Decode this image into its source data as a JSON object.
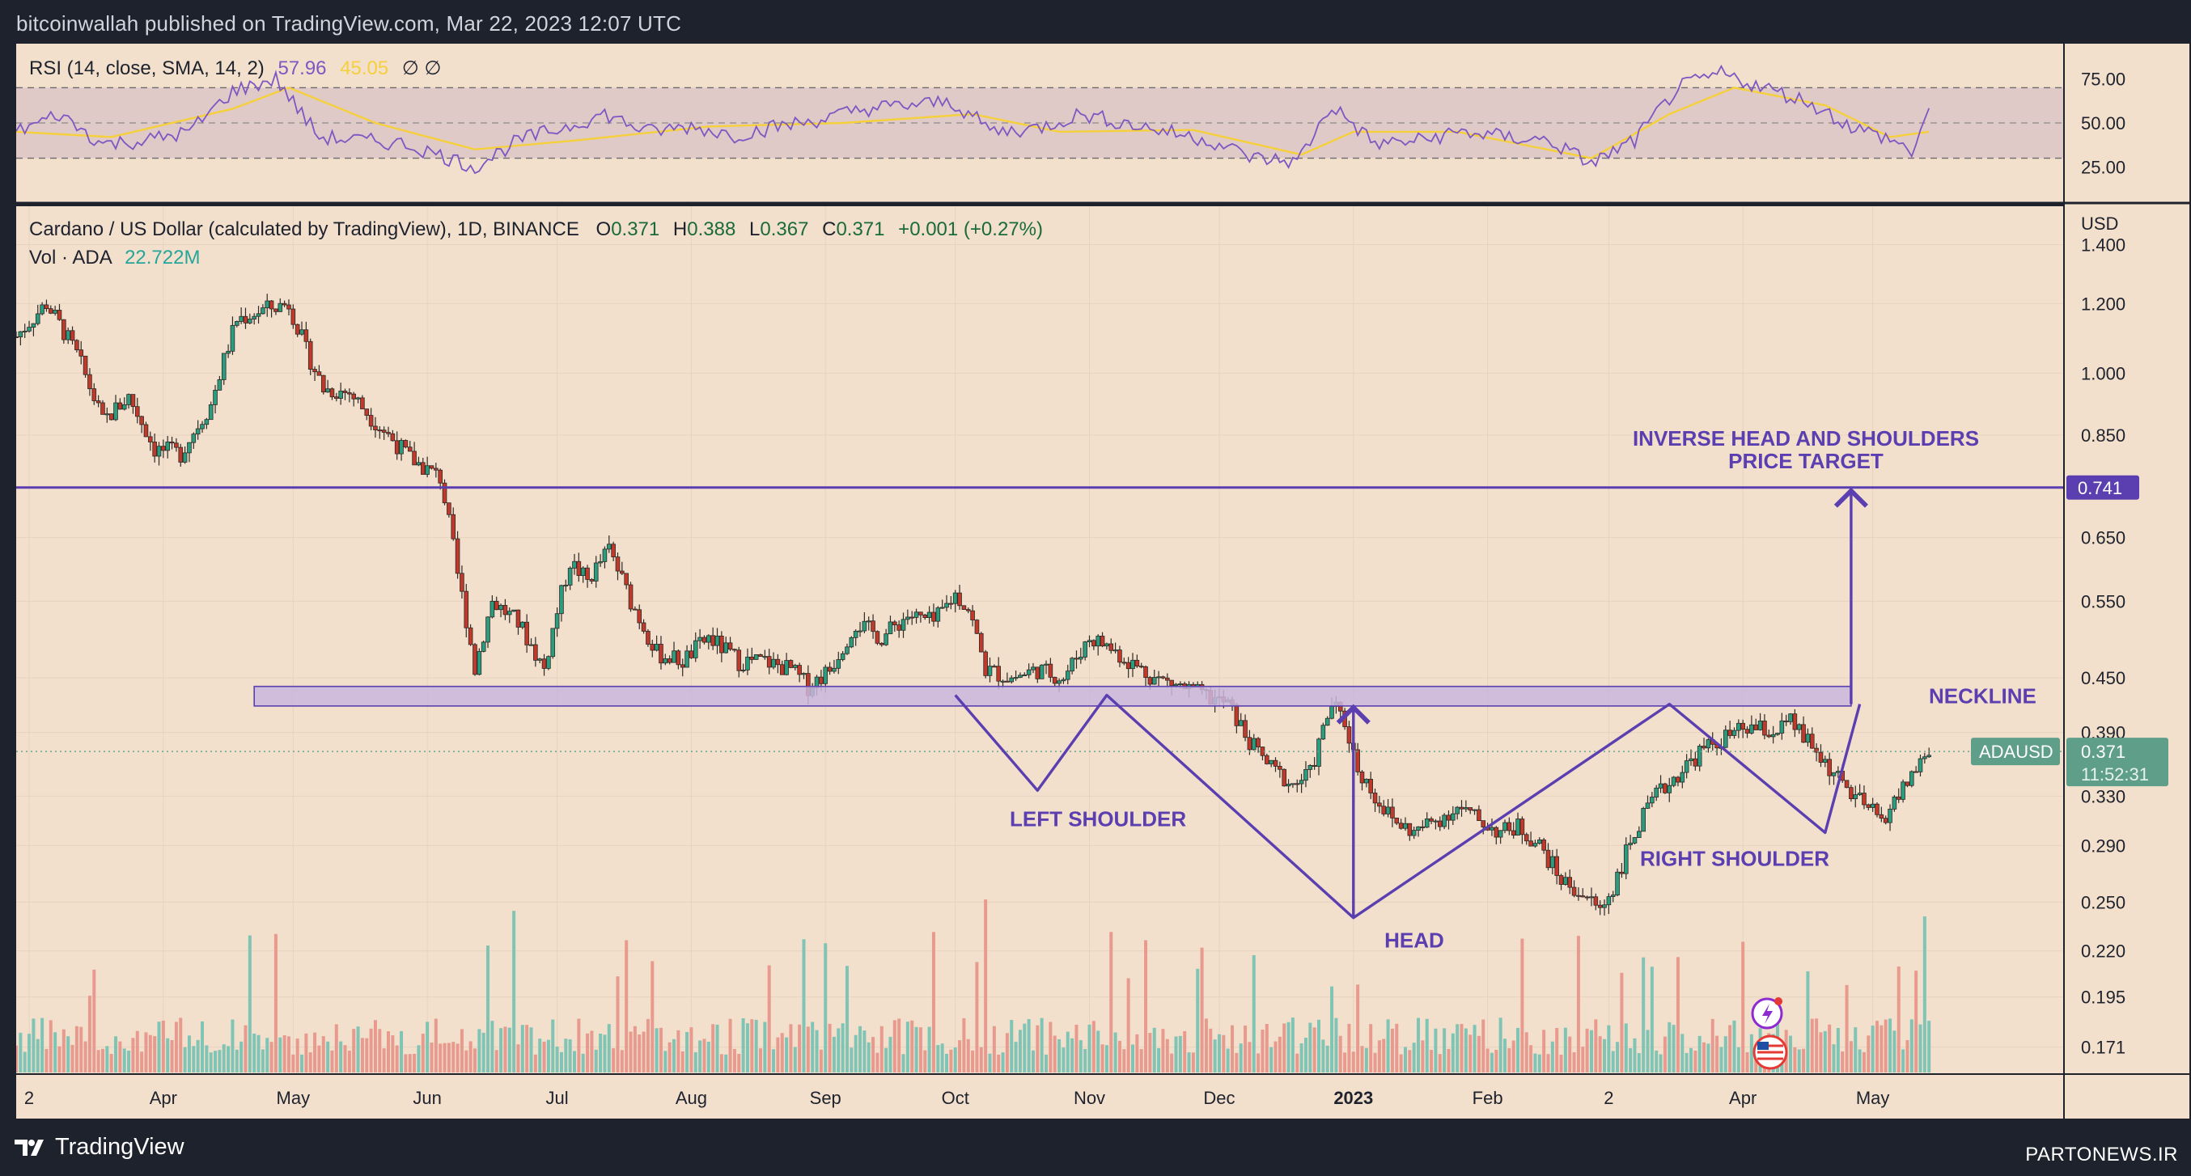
{
  "header": {
    "published": "bitcoinwallah published on TradingView.com, Mar 22, 2023 12:07 UTC"
  },
  "footer": {
    "brand": "TradingView",
    "watermark": "PARTONEWS.IR"
  },
  "colors": {
    "chart_bg": "#f2e0cd",
    "frame": "#1e222d",
    "bull": "#26a69a",
    "bear": "#ef5350",
    "candle_body": "#2e2a26",
    "rsi_line": "#7e57c2",
    "rsi_sma": "#f5d03a",
    "annotation": "#5b3fb0",
    "neckline_fill": "#c9b6dd",
    "price_tag": "#5f9f8a"
  },
  "chart_data": {
    "type": "candlestick",
    "symbol_line": {
      "name": "Cardano / US Dollar (calculated by TradingView), 1D, BINANCE",
      "o_label": "O",
      "o": "0.371",
      "h_label": "H",
      "h": "0.388",
      "l_label": "L",
      "l": "0.367",
      "c_label": "C",
      "c": "0.371",
      "change": "+0.001 (+0.27%)"
    },
    "volume_legend": {
      "label": "Vol · ADA",
      "value": "22.722M"
    },
    "rsi_legend": {
      "label": "RSI (14, close, SMA, 14, 2)",
      "rsi": "57.96",
      "sma": "45.05",
      "extra": "∅  ∅"
    },
    "currency": "USD",
    "y_scale": "log",
    "y_range": [
      0.16,
      1.5
    ],
    "price_ticks": [
      "1.400",
      "1.200",
      "1.000",
      "0.850",
      "0.741",
      "0.650",
      "0.550",
      "0.450",
      "0.390",
      "0.330",
      "0.290",
      "0.250",
      "0.220",
      "0.195",
      "0.171"
    ],
    "rsi_ticks": [
      "75.00",
      "50.00",
      "25.00"
    ],
    "x_ticks": [
      "Feb",
      "2",
      "Apr",
      "May",
      "Jun",
      "Jul",
      "Aug",
      "Sep",
      "Oct",
      "Nov",
      "Dec",
      "2023",
      "Feb",
      "2",
      "Apr",
      "May"
    ],
    "x_range": [
      "2022-02-26",
      "2023-06-14"
    ],
    "x_tick_dates": [
      "2022-02-01",
      "2022-03-01",
      "2022-04-01",
      "2022-05-01",
      "2022-06-01",
      "2022-07-01",
      "2022-08-01",
      "2022-09-01",
      "2022-10-01",
      "2022-11-01",
      "2022-12-01",
      "2023-01-01",
      "2023-02-01",
      "2023-03-01",
      "2023-04-01",
      "2023-05-01"
    ],
    "target_label": "0.741",
    "target_price": 0.741,
    "last_price": {
      "symbol": "ADAUSD",
      "price": "0.371",
      "countdown": "11:52:31",
      "value": 0.371
    },
    "neckline_zone": [
      0.418,
      0.44
    ],
    "neckline_zone_dates": [
      "2022-04-22",
      "2023-04-26"
    ],
    "price_path": [
      [
        "2022-02-26",
        1.1
      ],
      [
        "2022-03-05",
        1.2
      ],
      [
        "2022-03-12",
        1.05
      ],
      [
        "2022-03-18",
        0.88
      ],
      [
        "2022-03-24",
        0.94
      ],
      [
        "2022-03-30",
        0.82
      ],
      [
        "2022-04-05",
        0.81
      ],
      [
        "2022-04-12",
        0.92
      ],
      [
        "2022-04-18",
        1.15
      ],
      [
        "2022-04-24",
        1.18
      ],
      [
        "2022-04-30",
        1.2
      ],
      [
        "2022-05-04",
        1.06
      ],
      [
        "2022-05-08",
        0.96
      ],
      [
        "2022-05-14",
        0.95
      ],
      [
        "2022-05-20",
        0.88
      ],
      [
        "2022-05-28",
        0.8
      ],
      [
        "2022-06-04",
        0.76
      ],
      [
        "2022-06-08",
        0.59
      ],
      [
        "2022-06-12",
        0.46
      ],
      [
        "2022-06-16",
        0.55
      ],
      [
        "2022-06-22",
        0.52
      ],
      [
        "2022-06-28",
        0.46
      ],
      [
        "2022-07-04",
        0.61
      ],
      [
        "2022-07-08",
        0.58
      ],
      [
        "2022-07-13",
        0.63
      ],
      [
        "2022-07-18",
        0.55
      ],
      [
        "2022-07-24",
        0.48
      ],
      [
        "2022-07-30",
        0.47
      ],
      [
        "2022-08-05",
        0.5
      ],
      [
        "2022-08-12",
        0.47
      ],
      [
        "2022-08-18",
        0.47
      ],
      [
        "2022-08-24",
        0.46
      ],
      [
        "2022-08-28",
        0.44
      ],
      [
        "2022-09-02",
        0.46
      ],
      [
        "2022-09-08",
        0.52
      ],
      [
        "2022-09-14",
        0.5
      ],
      [
        "2022-09-20",
        0.53
      ],
      [
        "2022-09-26",
        0.52
      ],
      [
        "2022-10-01",
        0.56
      ],
      [
        "2022-10-04",
        0.54
      ],
      [
        "2022-10-08",
        0.46
      ],
      [
        "2022-10-14",
        0.45
      ],
      [
        "2022-10-20",
        0.46
      ],
      [
        "2022-10-26",
        0.45
      ],
      [
        "2022-11-01",
        0.5
      ],
      [
        "2022-11-05",
        0.49
      ],
      [
        "2022-11-10",
        0.47
      ],
      [
        "2022-11-16",
        0.45
      ],
      [
        "2022-11-22",
        0.44
      ],
      [
        "2022-11-27",
        0.43
      ],
      [
        "2022-12-03",
        0.42
      ],
      [
        "2022-12-08",
        0.38
      ],
      [
        "2022-12-13",
        0.355
      ],
      [
        "2022-12-18",
        0.34
      ],
      [
        "2022-12-22",
        0.35
      ],
      [
        "2022-12-27",
        0.42
      ],
      [
        "2022-12-30",
        0.4
      ],
      [
        "2023-01-02",
        0.355
      ],
      [
        "2023-01-06",
        0.33
      ],
      [
        "2023-01-10",
        0.31
      ],
      [
        "2023-01-15",
        0.3
      ],
      [
        "2023-01-20",
        0.31
      ],
      [
        "2023-01-25",
        0.32
      ],
      [
        "2023-01-30",
        0.31
      ],
      [
        "2023-02-04",
        0.3
      ],
      [
        "2023-02-08",
        0.305
      ],
      [
        "2023-02-13",
        0.29
      ],
      [
        "2023-02-18",
        0.265
      ],
      [
        "2023-02-23",
        0.255
      ],
      [
        "2023-02-27",
        0.245
      ],
      [
        "2023-03-02",
        0.26
      ],
      [
        "2023-03-07",
        0.3
      ],
      [
        "2023-03-12",
        0.33
      ],
      [
        "2023-03-17",
        0.35
      ],
      [
        "2023-03-22",
        0.37
      ],
      [
        "2023-03-28",
        0.385
      ],
      [
        "2023-04-03",
        0.395
      ],
      [
        "2023-04-08",
        0.39
      ],
      [
        "2023-04-12",
        0.4
      ],
      [
        "2023-04-16",
        0.38
      ],
      [
        "2023-04-20",
        0.36
      ],
      [
        "2023-04-24",
        0.34
      ],
      [
        "2023-04-28",
        0.325
      ],
      [
        "2023-05-03",
        0.31
      ],
      [
        "2023-05-07",
        0.33
      ],
      [
        "2023-05-10",
        0.35
      ],
      [
        "2023-05-14",
        0.371
      ]
    ],
    "rsi_path": [
      [
        "2022-02-26",
        45
      ],
      [
        "2022-03-08",
        55
      ],
      [
        "2022-03-18",
        38
      ],
      [
        "2022-03-28",
        40
      ],
      [
        "2022-04-07",
        45
      ],
      [
        "2022-04-17",
        68
      ],
      [
        "2022-04-27",
        75
      ],
      [
        "2022-05-07",
        42
      ],
      [
        "2022-05-17",
        40
      ],
      [
        "2022-05-27",
        38
      ],
      [
        "2022-06-06",
        30
      ],
      [
        "2022-06-12",
        25
      ],
      [
        "2022-06-22",
        40
      ],
      [
        "2022-07-02",
        47
      ],
      [
        "2022-07-12",
        55
      ],
      [
        "2022-07-22",
        45
      ],
      [
        "2022-08-01",
        48
      ],
      [
        "2022-08-11",
        43
      ],
      [
        "2022-08-21",
        48
      ],
      [
        "2022-08-31",
        52
      ],
      [
        "2022-09-10",
        58
      ],
      [
        "2022-09-20",
        60
      ],
      [
        "2022-09-30",
        62
      ],
      [
        "2022-10-10",
        45
      ],
      [
        "2022-10-20",
        47
      ],
      [
        "2022-10-30",
        55
      ],
      [
        "2022-11-09",
        50
      ],
      [
        "2022-11-19",
        45
      ],
      [
        "2022-11-29",
        40
      ],
      [
        "2022-12-09",
        30
      ],
      [
        "2022-12-19",
        28
      ],
      [
        "2022-12-27",
        60
      ],
      [
        "2023-01-06",
        38
      ],
      [
        "2023-01-16",
        40
      ],
      [
        "2023-01-26",
        45
      ],
      [
        "2023-02-05",
        42
      ],
      [
        "2023-02-15",
        40
      ],
      [
        "2023-02-25",
        27
      ],
      [
        "2023-03-07",
        40
      ],
      [
        "2023-03-17",
        70
      ],
      [
        "2023-03-27",
        78
      ],
      [
        "2023-04-06",
        70
      ],
      [
        "2023-04-16",
        62
      ],
      [
        "2023-04-26",
        48
      ],
      [
        "2023-05-06",
        40
      ],
      [
        "2023-05-10",
        33
      ],
      [
        "2023-05-14",
        58
      ]
    ],
    "rsi_sma_path": [
      [
        "2022-02-26",
        45
      ],
      [
        "2022-03-20",
        42
      ],
      [
        "2022-04-17",
        58
      ],
      [
        "2022-04-30",
        70
      ],
      [
        "2022-05-20",
        50
      ],
      [
        "2022-06-12",
        35
      ],
      [
        "2022-07-05",
        40
      ],
      [
        "2022-08-05",
        48
      ],
      [
        "2022-09-05",
        50
      ],
      [
        "2022-10-05",
        55
      ],
      [
        "2022-10-25",
        45
      ],
      [
        "2022-11-25",
        46
      ],
      [
        "2022-12-20",
        32
      ],
      [
        "2023-01-01",
        45
      ],
      [
        "2023-01-25",
        45
      ],
      [
        "2023-02-25",
        30
      ],
      [
        "2023-03-15",
        55
      ],
      [
        "2023-03-30",
        70
      ],
      [
        "2023-04-20",
        60
      ],
      [
        "2023-05-05",
        42
      ],
      [
        "2023-05-14",
        45
      ]
    ],
    "pattern_line": [
      [
        "2022-10-01",
        0.43
      ],
      [
        "2022-10-20",
        0.335
      ],
      [
        "2022-11-05",
        0.43
      ],
      [
        "2023-01-01",
        0.24
      ],
      [
        "2023-03-15",
        0.42
      ],
      [
        "2023-04-20",
        0.3
      ],
      [
        "2023-04-28",
        0.42
      ]
    ],
    "measured_move": {
      "date": "2023-01-01",
      "from": 0.24,
      "to": 0.42
    },
    "target_arrow": {
      "date": "2023-04-26",
      "from": 0.42,
      "to": 0.741
    },
    "annotations": {
      "target": [
        "INVERSE HEAD AND SHOULDERS",
        "PRICE TARGET"
      ],
      "neckline": "NECKLINE",
      "left_shoulder": "LEFT SHOULDER",
      "head": "HEAD",
      "right_shoulder": "RIGHT SHOULDER"
    }
  }
}
